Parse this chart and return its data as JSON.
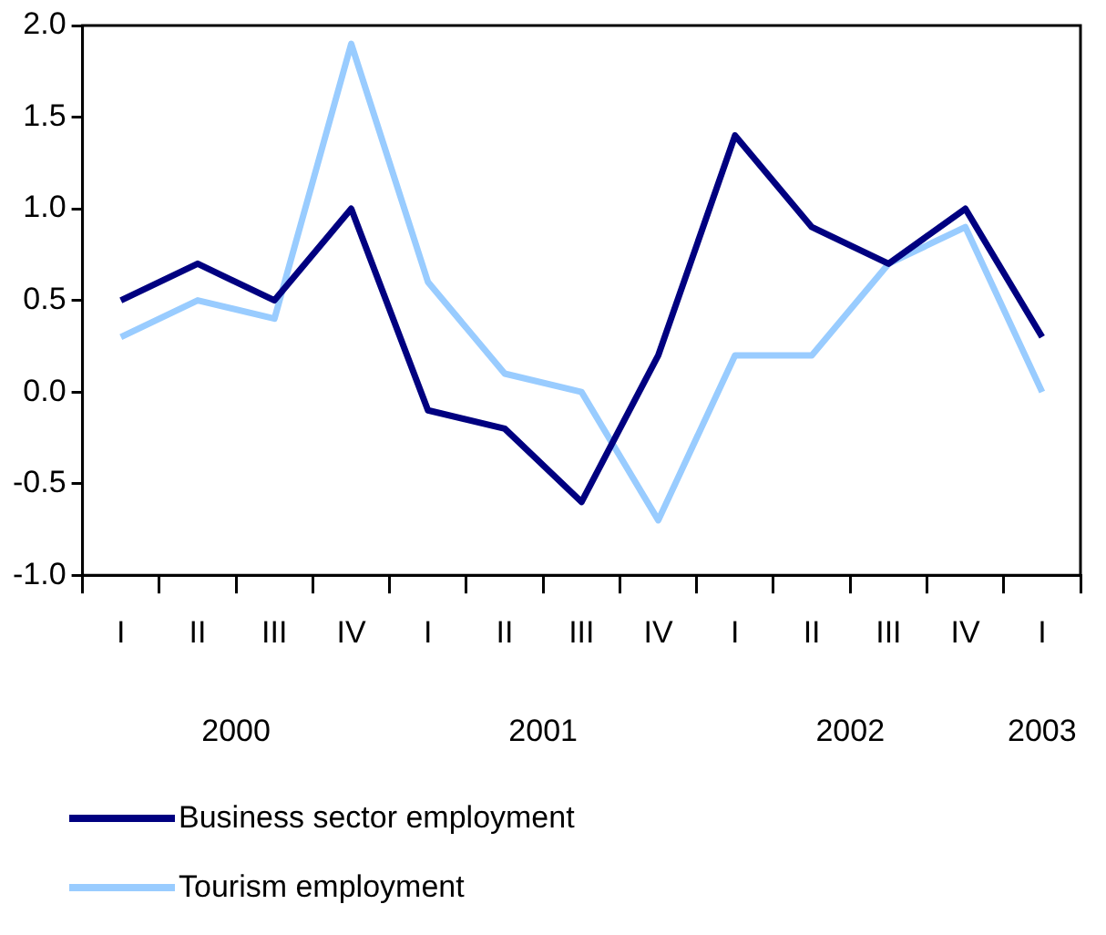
{
  "chart_data": {
    "type": "line",
    "categories": [
      "I",
      "II",
      "III",
      "IV",
      "I",
      "II",
      "III",
      "IV",
      "I",
      "II",
      "III",
      "IV",
      "I"
    ],
    "series": [
      {
        "name": "Business sector employment",
        "color": "#000080",
        "values": [
          0.5,
          0.7,
          0.5,
          1.0,
          -0.1,
          -0.2,
          -0.6,
          0.2,
          1.4,
          0.9,
          0.7,
          1.0,
          0.3
        ]
      },
      {
        "name": "Tourism employment",
        "color": "#99ccff",
        "values": [
          0.3,
          0.5,
          0.4,
          1.9,
          0.6,
          0.1,
          0.0,
          -0.7,
          0.2,
          0.2,
          0.7,
          0.9,
          0.0
        ]
      }
    ],
    "ylim": [
      -1,
      2
    ],
    "yticks": [
      {
        "value": -1,
        "label": "-1.0"
      },
      {
        "value": -0.5,
        "label": "-0.5"
      },
      {
        "value": 0,
        "label": "0.0"
      },
      {
        "value": 0.5,
        "label": "0.5"
      },
      {
        "value": 1,
        "label": "1.0"
      },
      {
        "value": 1.5,
        "label": "1.5"
      },
      {
        "value": 2,
        "label": "2.0"
      }
    ],
    "annotations": [
      "2000",
      "2001",
      "2002",
      "2003"
    ],
    "grid": false,
    "legend": "bottom",
    "marker": "none",
    "line_style": "solid"
  }
}
